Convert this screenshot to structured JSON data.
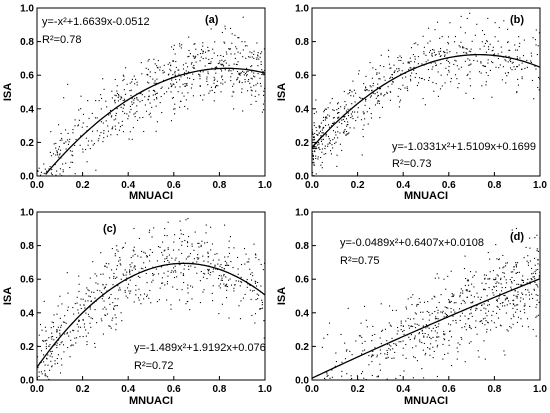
{
  "chart_data": [
    {
      "type": "scatter",
      "panel": "(a)",
      "xlabel": "MNUACI",
      "ylabel": "ISA",
      "xlim": [
        0.0,
        1.0
      ],
      "ylim": [
        0.0,
        1.0
      ],
      "x_ticks": [
        "0.0",
        "0.2",
        "0.4",
        "0.6",
        "0.8",
        "1.0"
      ],
      "y_ticks": [
        "0.0",
        "0.2",
        "0.4",
        "0.6",
        "0.8",
        "1.0"
      ],
      "equation": "y=-x²+1.6639x-0.0512",
      "r_squared": "R²=0.78",
      "fit": {
        "a": -1.0,
        "b": 1.6639,
        "c": -0.0512
      },
      "point_pattern": {
        "count": 650,
        "x_shape": 0.75,
        "y_noise": 0.11,
        "x_max": 1.0,
        "seed": 11
      }
    },
    {
      "type": "scatter",
      "panel": "(b)",
      "xlabel": "MNUACI",
      "ylabel": "ISA",
      "xlim": [
        0.0,
        1.0
      ],
      "ylim": [
        0.0,
        1.0
      ],
      "x_ticks": [
        "0.0",
        "0.2",
        "0.4",
        "0.6",
        "0.8",
        "1.0"
      ],
      "y_ticks": [
        "0.0",
        "0.2",
        "0.4",
        "0.6",
        "0.8",
        "1.0"
      ],
      "equation": "y=-1.0331x²+1.5109x+0.1699",
      "r_squared": "R²=0.73",
      "fit": {
        "a": -1.0331,
        "b": 1.5109,
        "c": 0.1699
      },
      "point_pattern": {
        "count": 650,
        "x_shape": 1.6,
        "y_noise": 0.09,
        "x_max": 1.0,
        "seed": 23
      }
    },
    {
      "type": "scatter",
      "panel": "(c)",
      "xlabel": "MNUACI",
      "ylabel": "ISA",
      "xlim": [
        0.0,
        1.0
      ],
      "ylim": [
        0.0,
        1.0
      ],
      "x_ticks": [
        "0.0",
        "0.2",
        "0.4",
        "0.6",
        "0.8",
        "1.0"
      ],
      "y_ticks": [
        "0.0",
        "0.2",
        "0.4",
        "0.6",
        "0.8",
        "1.0"
      ],
      "equation": "y=-1.489x²+1.9192x+0.076",
      "r_squared": "R²=0.72",
      "fit": {
        "a": -1.489,
        "b": 1.9192,
        "c": 0.076
      },
      "point_pattern": {
        "count": 650,
        "x_shape": 1.2,
        "y_noise": 0.11,
        "x_max": 1.0,
        "seed": 37
      }
    },
    {
      "type": "scatter",
      "panel": "(d)",
      "xlabel": "MNUACI",
      "ylabel": "ISA",
      "xlim": [
        0.0,
        1.0
      ],
      "ylim": [
        0.0,
        1.0
      ],
      "x_ticks": [
        "0.0",
        "0.2",
        "0.4",
        "0.6",
        "0.8",
        "1.0"
      ],
      "y_ticks": [
        "0.0",
        "0.2",
        "0.4",
        "0.6",
        "0.8",
        "1.0"
      ],
      "equation": "y=-0.0489x²+0.6407x+0.0108",
      "r_squared": "R²=0.75",
      "fit": {
        "a": -0.0489,
        "b": 0.6407,
        "c": 0.0108
      },
      "point_pattern": {
        "count": 650,
        "x_shape": 0.6,
        "y_noise": 0.13,
        "x_max": 1.0,
        "seed": 53
      }
    }
  ]
}
